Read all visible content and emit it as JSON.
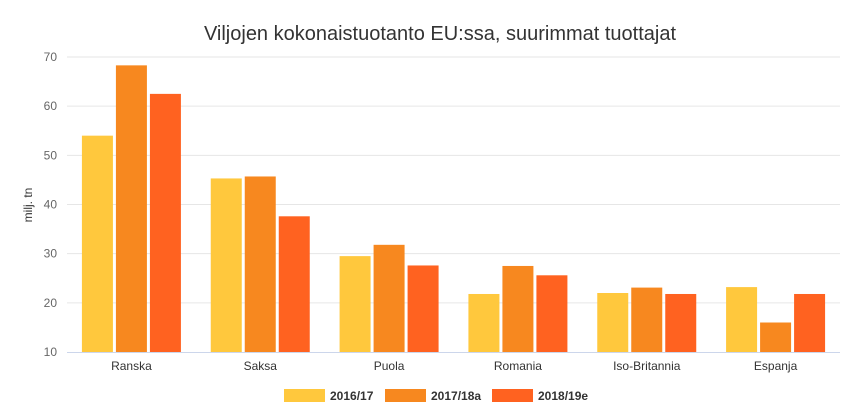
{
  "chart_data": {
    "type": "bar",
    "title": "Viljojen kokonaistuotanto EU:ssa, suurimmat tuottajat",
    "ylabel": "milj. tn",
    "xlabel": "",
    "ylim": [
      10,
      70
    ],
    "yticks": [
      10,
      20,
      30,
      40,
      50,
      60,
      70
    ],
    "categories": [
      "Ranska",
      "Saksa",
      "Puola",
      "Romania",
      "Iso-Britannia",
      "Espanja"
    ],
    "series": [
      {
        "name": "2016/17",
        "color": "#ffc83d",
        "values": [
          54.0,
          45.3,
          29.5,
          21.8,
          22.0,
          23.2
        ]
      },
      {
        "name": "2017/18a",
        "color": "#f7881f",
        "values": [
          68.3,
          45.7,
          31.8,
          27.5,
          23.1,
          16.0
        ]
      },
      {
        "name": "2018/19e",
        "color": "#ff6220",
        "values": [
          62.5,
          37.6,
          27.6,
          25.6,
          21.8,
          21.8
        ]
      }
    ],
    "grid": true,
    "legend_position": "bottom-center"
  }
}
